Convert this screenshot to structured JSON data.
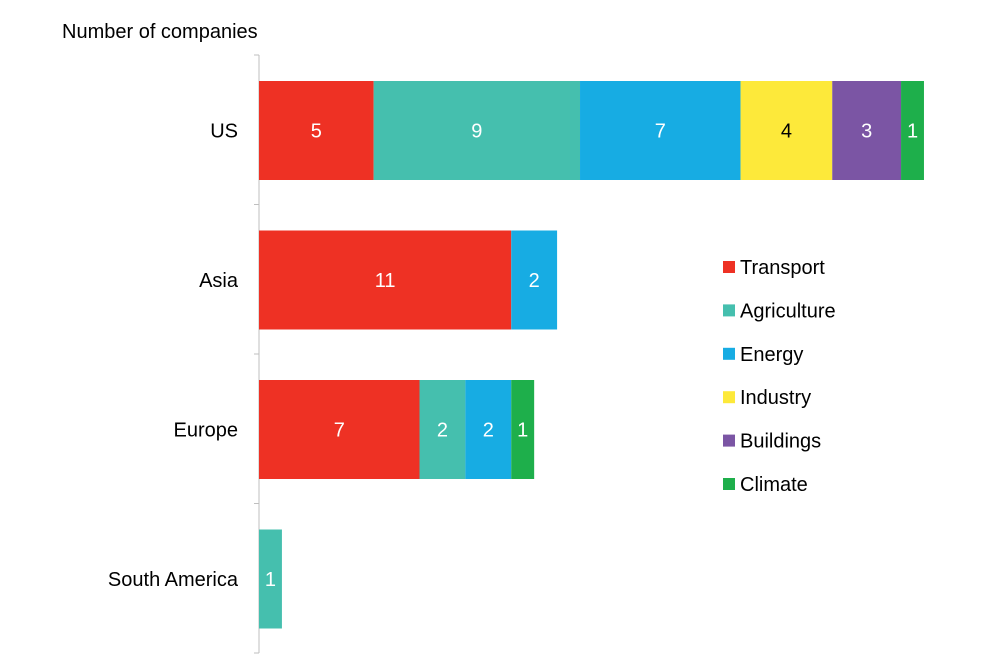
{
  "chart_data": {
    "type": "bar",
    "orientation": "horizontal",
    "stacked": true,
    "title": "Number of companies",
    "categories": [
      "US",
      "Asia",
      "Europe",
      "South America"
    ],
    "series": [
      {
        "name": "Transport",
        "color": "#EE3124",
        "values": [
          5,
          11,
          7,
          0
        ]
      },
      {
        "name": "Agriculture",
        "color": "#45BFAE",
        "values": [
          9,
          0,
          2,
          1
        ]
      },
      {
        "name": "Energy",
        "color": "#17ACE3",
        "values": [
          7,
          2,
          2,
          0
        ]
      },
      {
        "name": "Industry",
        "color": "#FDE93A",
        "values": [
          4,
          0,
          0,
          0
        ]
      },
      {
        "name": "Buildings",
        "color": "#7B55A4",
        "values": [
          3,
          0,
          0,
          0
        ]
      },
      {
        "name": "Climate",
        "color": "#1EAF4B",
        "values": [
          1,
          0,
          1,
          0
        ]
      }
    ],
    "label_colors": {
      "Industry": "#000000"
    },
    "xlim": [
      0,
      29
    ],
    "grid": false,
    "legend_position": "right"
  }
}
